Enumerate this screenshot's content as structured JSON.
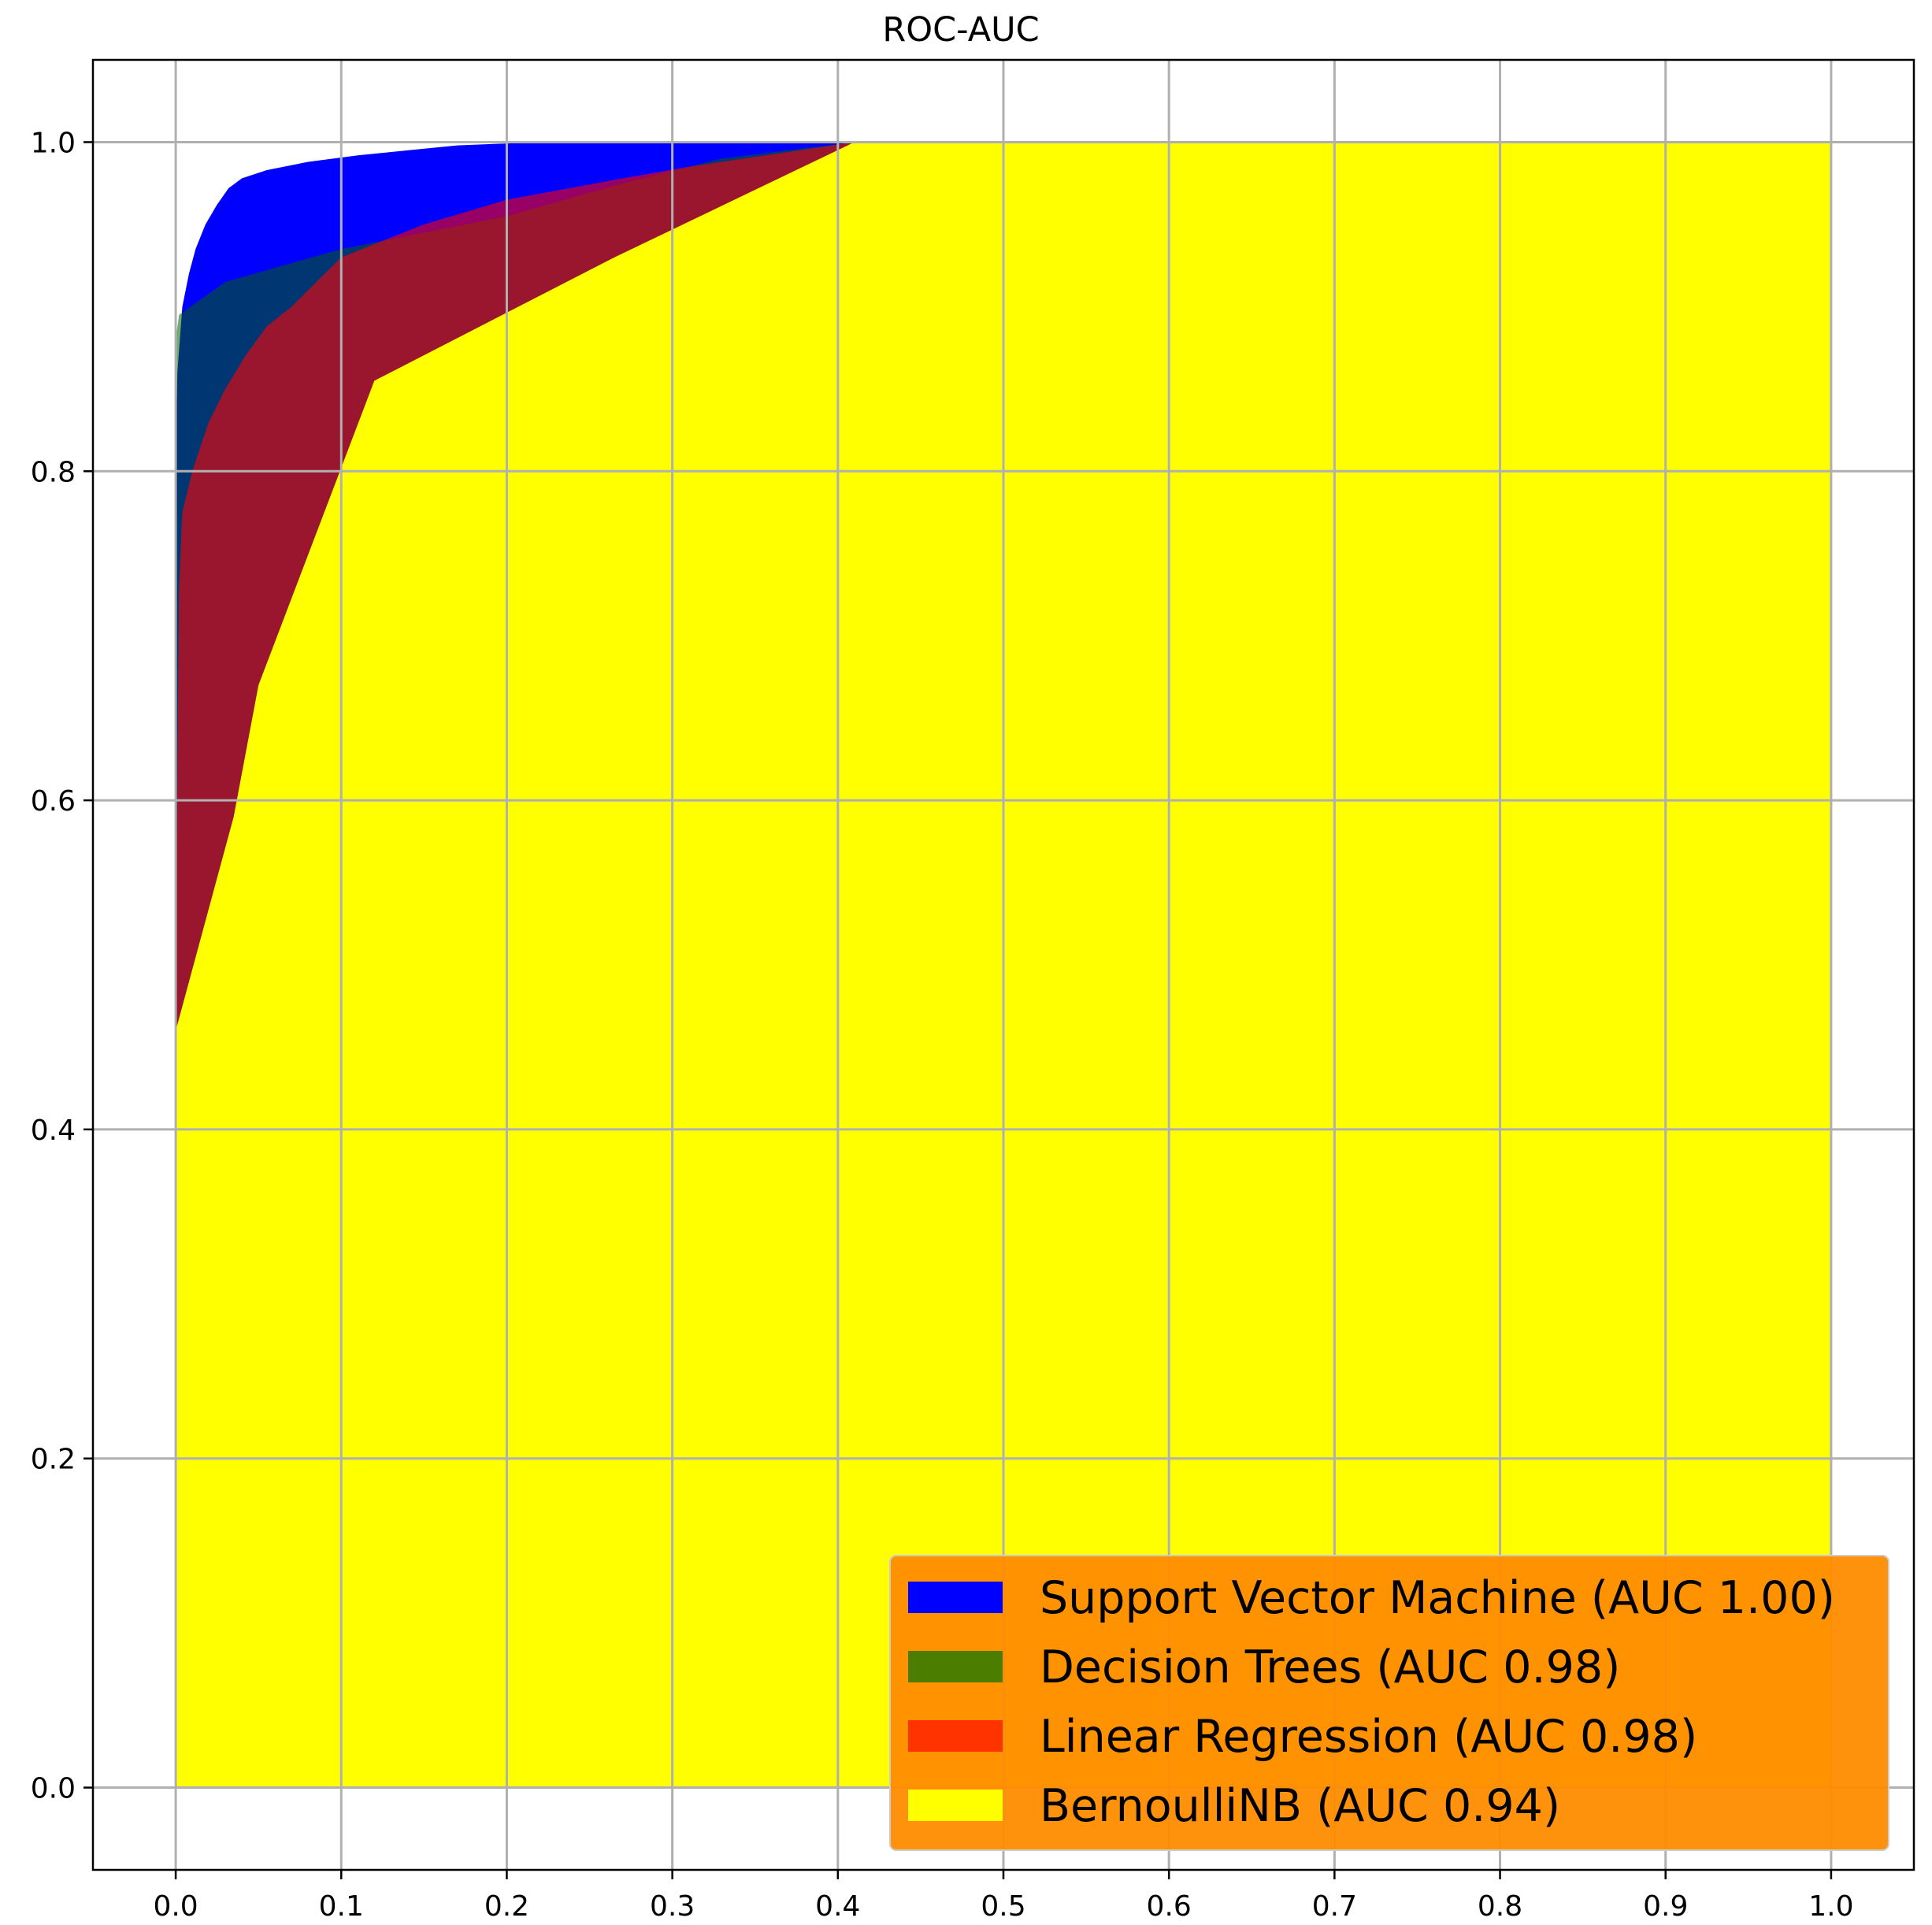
{
  "chart_data": {
    "type": "area",
    "title": "ROC-AUC",
    "xlabel": "",
    "ylabel": "",
    "xlim": [
      -0.05,
      1.05
    ],
    "ylim": [
      -0.05,
      1.05
    ],
    "x_ticks": [
      "0.0",
      "0.1",
      "0.2",
      "0.3",
      "0.4",
      "0.5",
      "0.6",
      "0.7",
      "0.8",
      "0.9",
      "1.0"
    ],
    "y_ticks": [
      "0.0",
      "0.2",
      "0.4",
      "0.6",
      "0.8",
      "1.0"
    ],
    "grid": true,
    "legend_position": "lower-right",
    "legend_background": "#ff8c00",
    "series": [
      {
        "name": "Support Vector Machine (AUC 1.00)",
        "color": "#0000ff",
        "legend_color": "#0000ff",
        "points": [
          [
            0,
            0
          ],
          [
            0,
            0.7
          ],
          [
            0,
            0.8
          ],
          [
            0.001,
            0.86
          ],
          [
            0.004,
            0.9
          ],
          [
            0.008,
            0.92
          ],
          [
            0.012,
            0.935
          ],
          [
            0.018,
            0.95
          ],
          [
            0.025,
            0.962
          ],
          [
            0.032,
            0.972
          ],
          [
            0.04,
            0.978
          ],
          [
            0.055,
            0.983
          ],
          [
            0.08,
            0.988
          ],
          [
            0.11,
            0.992
          ],
          [
            0.14,
            0.995
          ],
          [
            0.17,
            0.998
          ],
          [
            0.22,
            1.0
          ],
          [
            0.4,
            1.0
          ],
          [
            1.0,
            1.0
          ],
          [
            1.0,
            0
          ]
        ]
      },
      {
        "name": "Decision Trees (AUC 0.98)",
        "color": "#006400",
        "legend_color": "#4a7d00",
        "points": [
          [
            0,
            0
          ],
          [
            0,
            0.88
          ],
          [
            0.002,
            0.895
          ],
          [
            0.03,
            0.915
          ],
          [
            0.1,
            0.935
          ],
          [
            0.2,
            0.955
          ],
          [
            0.27,
            0.975
          ],
          [
            0.33,
            0.99
          ],
          [
            0.41,
            1.0
          ],
          [
            1.0,
            1.0
          ],
          [
            1.0,
            0
          ]
        ]
      },
      {
        "name": "Linear Regression (AUC 0.98)",
        "color": "#ff0000",
        "legend_color": "#ff3300",
        "points": [
          [
            0,
            0
          ],
          [
            0,
            0.46
          ],
          [
            0.001,
            0.62
          ],
          [
            0.002,
            0.73
          ],
          [
            0.004,
            0.775
          ],
          [
            0.01,
            0.8
          ],
          [
            0.02,
            0.83
          ],
          [
            0.03,
            0.85
          ],
          [
            0.042,
            0.87
          ],
          [
            0.055,
            0.888
          ],
          [
            0.07,
            0.9
          ],
          [
            0.085,
            0.915
          ],
          [
            0.1,
            0.93
          ],
          [
            0.12,
            0.938
          ],
          [
            0.15,
            0.95
          ],
          [
            0.2,
            0.965
          ],
          [
            0.27,
            0.978
          ],
          [
            0.31,
            0.985
          ],
          [
            0.41,
            1.0
          ],
          [
            1.0,
            1.0
          ],
          [
            1.0,
            0
          ]
        ]
      },
      {
        "name": "BernoulliNB (AUC 0.94)",
        "color": "#ffff00",
        "legend_color": "#ffff00",
        "points": [
          [
            0,
            0
          ],
          [
            0,
            0.46
          ],
          [
            0.035,
            0.59
          ],
          [
            0.05,
            0.67
          ],
          [
            0.12,
            0.855
          ],
          [
            0.265,
            0.93
          ],
          [
            0.41,
            1.0
          ],
          [
            1.0,
            1.0
          ],
          [
            1.0,
            0
          ]
        ]
      }
    ],
    "blend_notes": "Overlapping semi-transparent fills render as blue, dark teal, crimson and dark red bands"
  }
}
